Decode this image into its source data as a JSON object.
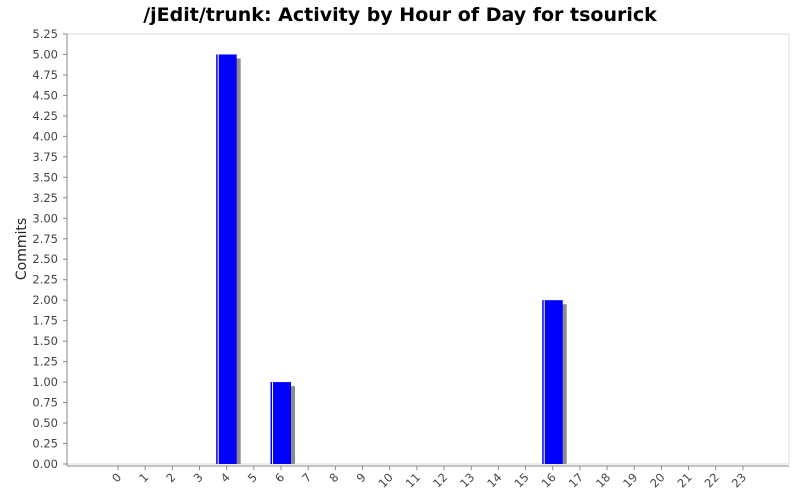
{
  "chart_data": {
    "type": "bar",
    "title": "/jEdit/trunk: Activity by Hour of Day for tsourick",
    "xlabel": "",
    "ylabel": "Commits",
    "categories": [
      "0",
      "1",
      "2",
      "3",
      "4",
      "5",
      "6",
      "7",
      "8",
      "9",
      "10",
      "11",
      "12",
      "13",
      "14",
      "15",
      "16",
      "17",
      "18",
      "19",
      "20",
      "21",
      "22",
      "23"
    ],
    "values": [
      0,
      0,
      0,
      0,
      5,
      0,
      1,
      0,
      0,
      0,
      0,
      0,
      0,
      0,
      0,
      0,
      2,
      0,
      0,
      0,
      0,
      0,
      0,
      0
    ],
    "ylim": [
      0,
      5.25
    ],
    "y_ticks": [
      "0.00",
      "0.25",
      "0.50",
      "0.75",
      "1.00",
      "1.25",
      "1.50",
      "1.75",
      "2.00",
      "2.25",
      "2.50",
      "2.75",
      "3.00",
      "3.25",
      "3.50",
      "3.75",
      "4.00",
      "4.25",
      "4.50",
      "4.75",
      "5.00",
      "5.25"
    ],
    "grid": false,
    "legend": "none",
    "colors": {
      "bar": "#0000ff",
      "shadow": "#8c8c8c",
      "axis": "#888888"
    }
  }
}
